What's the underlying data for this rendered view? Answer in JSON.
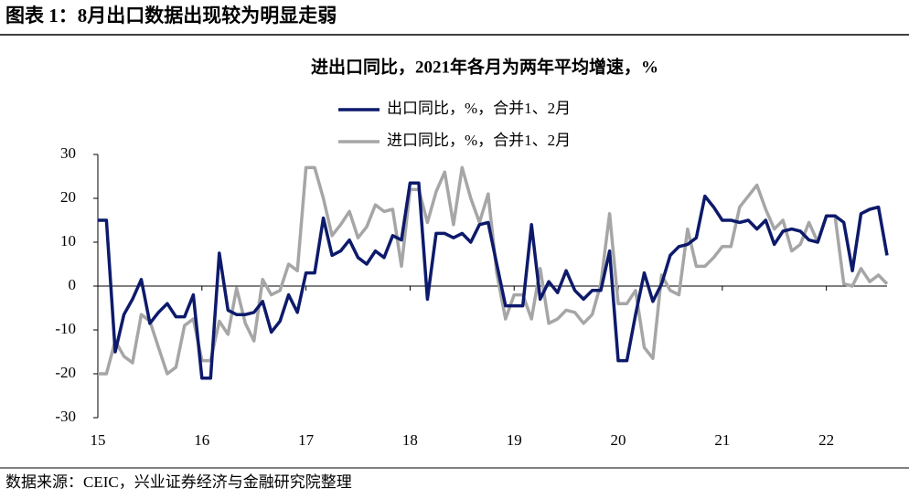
{
  "header": {
    "title": "图表 1：8月出口数据出现较为明显走弱"
  },
  "chart_data": {
    "type": "line",
    "title": "进出口同比，2021年各月为两年平均增速，%",
    "x": [
      15,
      15.083,
      15.167,
      15.25,
      15.333,
      15.417,
      15.5,
      15.583,
      15.667,
      15.75,
      15.833,
      15.917,
      16,
      16.083,
      16.167,
      16.25,
      16.333,
      16.417,
      16.5,
      16.583,
      16.667,
      16.75,
      16.833,
      16.917,
      17,
      17.083,
      17.167,
      17.25,
      17.333,
      17.417,
      17.5,
      17.583,
      17.667,
      17.75,
      17.833,
      17.917,
      18,
      18.083,
      18.167,
      18.25,
      18.333,
      18.417,
      18.5,
      18.583,
      18.667,
      18.75,
      18.833,
      18.917,
      19,
      19.083,
      19.167,
      19.25,
      19.333,
      19.417,
      19.5,
      19.583,
      19.667,
      19.75,
      19.833,
      19.917,
      20,
      20.083,
      20.167,
      20.25,
      20.333,
      20.417,
      20.5,
      20.583,
      20.667,
      20.75,
      20.833,
      20.917,
      21,
      21.083,
      21.167,
      21.25,
      21.333,
      21.417,
      21.5,
      21.583,
      21.667,
      21.75,
      21.833,
      21.917,
      22,
      22.083,
      22.167,
      22.25,
      22.333,
      22.417,
      22.5,
      22.583
    ],
    "series": [
      {
        "name": "出口同比，%，合并1、2月",
        "color": "#0d1a6b",
        "values": [
          15,
          15,
          -15,
          -6.5,
          -3,
          1.5,
          -8.5,
          -6,
          -4,
          -7,
          -7,
          -2,
          -21,
          -21,
          7.5,
          -5.5,
          -6.5,
          -6.5,
          -6,
          -3.5,
          -10.5,
          -8,
          -2,
          -6,
          3,
          3,
          15.5,
          7,
          8,
          10.5,
          6.5,
          5,
          8,
          6.5,
          11.5,
          10.5,
          23.5,
          23.5,
          -3,
          12,
          12,
          11,
          12,
          10,
          14,
          14.5,
          5,
          -4.5,
          -4.5,
          -4.5,
          14,
          -3,
          1,
          -1.5,
          3.5,
          -1,
          -3,
          -1,
          -1,
          8,
          -17,
          -17,
          -6.5,
          3,
          -3.5,
          0.5,
          7,
          9,
          9.5,
          11,
          20.5,
          18,
          15,
          15,
          14.5,
          15,
          13,
          15,
          9.5,
          12.5,
          13,
          12.5,
          10.5,
          10,
          16,
          16,
          14.5,
          3.5,
          16.5,
          17.5,
          18,
          7
        ]
      },
      {
        "name": "进口同比，%，合并1、2月",
        "color": "#a6a6a6",
        "values": [
          -20,
          -20,
          -12.5,
          -16,
          -17.5,
          -6.5,
          -8,
          -14,
          -20,
          -18.5,
          -9,
          -7.5,
          -17,
          -17,
          -8,
          -11,
          -0.5,
          -8.5,
          -12.5,
          1.5,
          -2,
          -1,
          5,
          3.5,
          27,
          27,
          20,
          11.5,
          14,
          17,
          11,
          13.5,
          18.5,
          17,
          17.5,
          4.5,
          22,
          22,
          14.5,
          21.5,
          26,
          14,
          27,
          20,
          14.5,
          21,
          3,
          -7.5,
          -2,
          -2,
          -7.5,
          4,
          -8.5,
          -7.5,
          -5.5,
          -6,
          -8.5,
          -6.5,
          0.5,
          16.5,
          -4,
          -4,
          -1,
          -14,
          -16.5,
          2.5,
          -1,
          -2,
          13,
          4.5,
          4.5,
          6.5,
          9,
          9,
          18,
          20.5,
          23,
          17.5,
          13,
          15,
          8,
          9.5,
          14.5,
          10,
          16,
          16,
          0.5,
          0,
          4,
          1,
          2.5,
          0.5
        ]
      }
    ],
    "xlim": [
      15,
      22.583
    ],
    "xticks": [
      15,
      16,
      17,
      18,
      19,
      20,
      21,
      22
    ],
    "ylim": [
      -30,
      30
    ],
    "yticks": [
      -30,
      -20,
      -10,
      0,
      10,
      20,
      30
    ]
  },
  "footer": {
    "source": "数据来源：CEIC，兴业证券经济与金融研究院整理"
  }
}
